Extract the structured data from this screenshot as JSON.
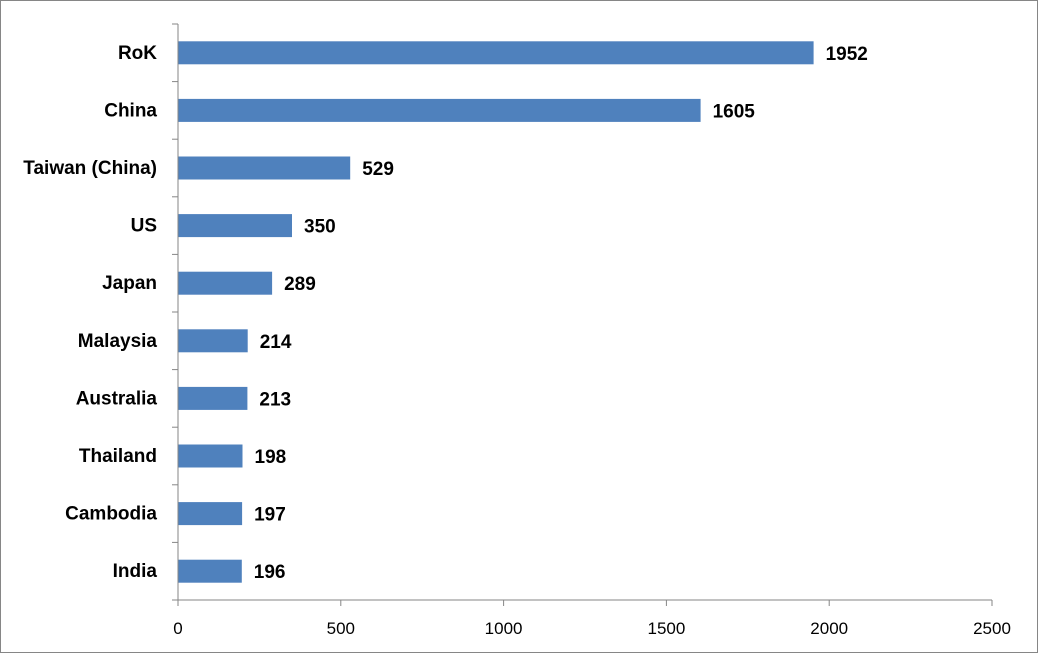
{
  "chart_data": {
    "type": "bar",
    "orientation": "horizontal",
    "title": "",
    "xlabel": "",
    "ylabel": "",
    "categories": [
      "RoK",
      "China",
      "Taiwan (China)",
      "US",
      "Japan",
      "Malaysia",
      "Australia",
      "Thailand",
      "Cambodia",
      "India"
    ],
    "values": [
      1952,
      1605,
      529,
      350,
      289,
      214,
      213,
      198,
      197,
      196
    ],
    "data_labels": [
      "1952",
      "1605",
      "529",
      "350",
      "289",
      "214",
      "213",
      "198",
      "197",
      "196"
    ],
    "xlim": [
      0,
      2500
    ],
    "x_ticks": [
      0,
      500,
      1000,
      1500,
      2000,
      2500
    ],
    "x_tick_labels": [
      "0",
      "500",
      "1000",
      "1500",
      "2000",
      "2500"
    ],
    "grid": false,
    "legend": "none",
    "bar_color": "#4F81BD",
    "axis_color": "#868686"
  }
}
